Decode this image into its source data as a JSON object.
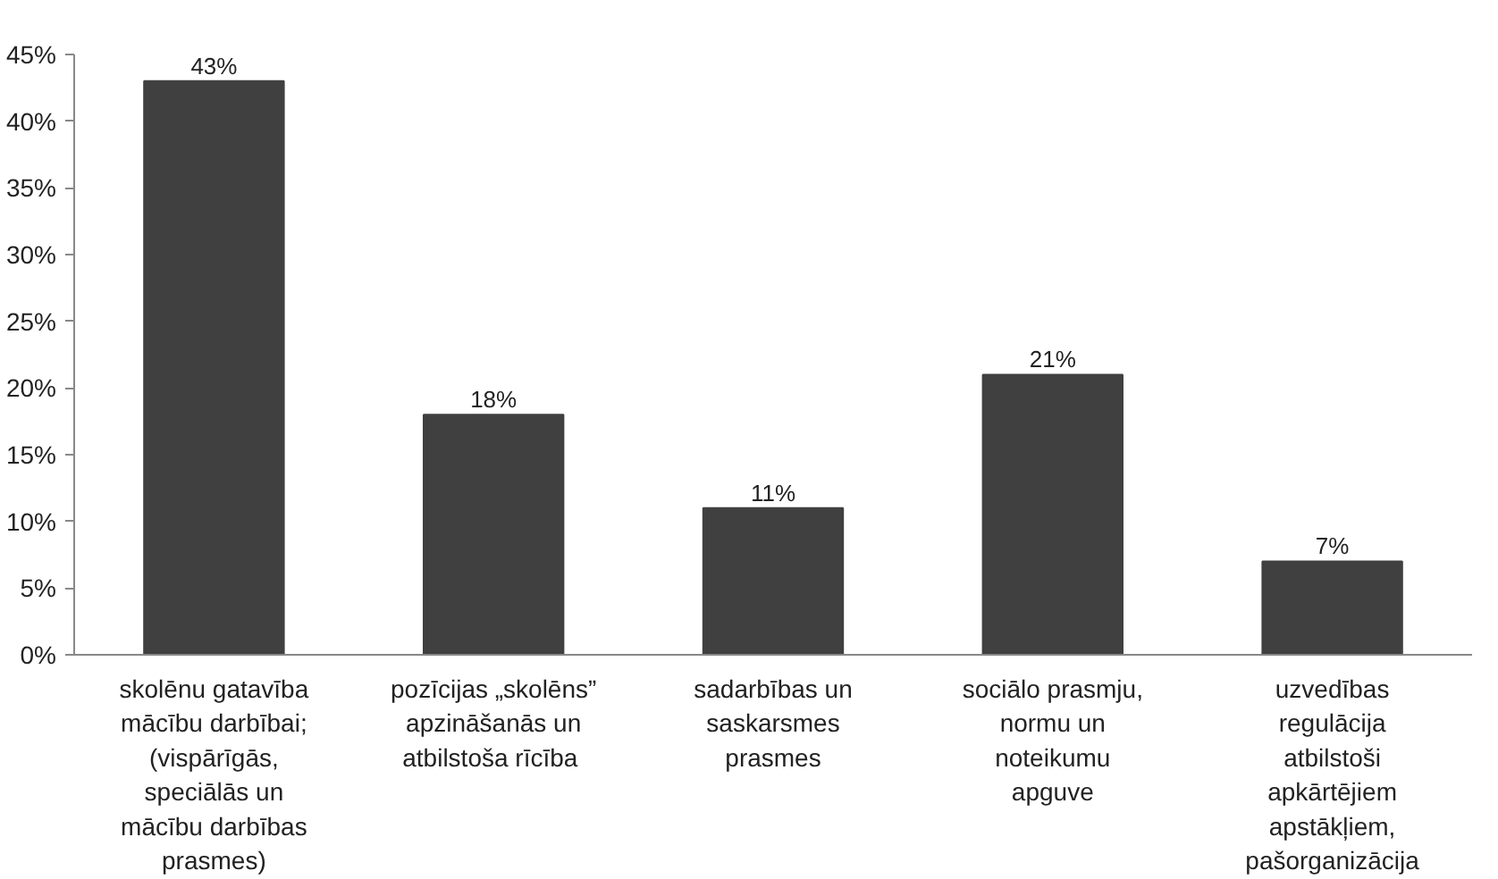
{
  "chart_data": {
    "type": "bar",
    "categories": [
      "skolēnu gatavība\nmācību darbībai;\n(vispārīgās,\nspeciālās un\nmācību darbības\nprasmes)",
      "pozīcijas „skolēns”\napzināšanās un\natbilstoša  rīcība",
      "sadarbības un\nsaskarsmes\nprasmes",
      "sociālo prasmju,\nnormu un\nnoteikumu\napguve",
      "uzvedības\nregulācija\natbilstoši\napkārtējiem\napstākļiem,\npašorganizācija"
    ],
    "values": [
      43,
      18,
      11,
      21,
      7
    ],
    "value_labels": [
      "43%",
      "18%",
      "11%",
      "21%",
      "7%"
    ],
    "color": "#404040",
    "ylim": [
      0,
      45
    ],
    "yticks": [
      {
        "value": 0,
        "label": "0%"
      },
      {
        "value": 5,
        "label": "5%"
      },
      {
        "value": 10,
        "label": "10%"
      },
      {
        "value": 15,
        "label": "15%"
      },
      {
        "value": 20,
        "label": "20%"
      },
      {
        "value": 25,
        "label": "25%"
      },
      {
        "value": 30,
        "label": "30%"
      },
      {
        "value": 35,
        "label": "35%"
      },
      {
        "value": 40,
        "label": "40%"
      },
      {
        "value": 45,
        "label": "45%"
      }
    ],
    "grid": false
  }
}
